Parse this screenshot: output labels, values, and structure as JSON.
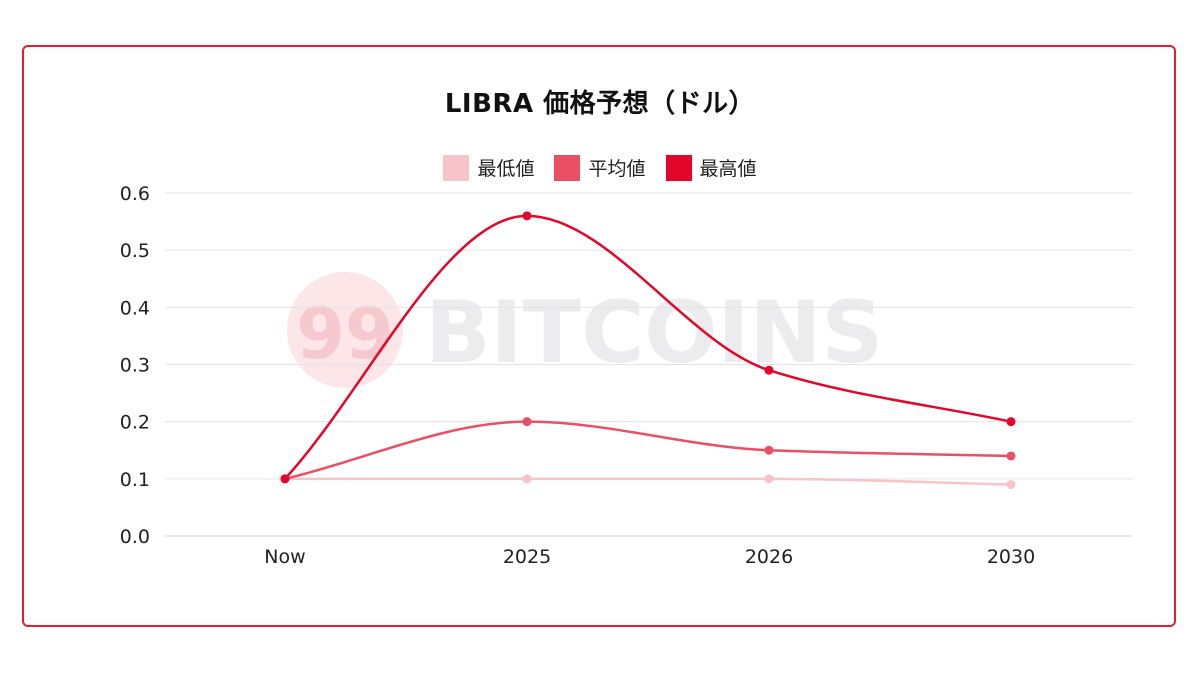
{
  "chart_data": {
    "type": "line",
    "title": "LIBRA 価格予想（ドル）",
    "categories": [
      "Now",
      "2025",
      "2026",
      "2030"
    ],
    "series": [
      {
        "name": "最低値",
        "color": "#f9c3cb",
        "values": [
          0.1,
          0.1,
          0.1,
          0.09
        ]
      },
      {
        "name": "平均値",
        "color": "#ea4f66",
        "values": [
          0.1,
          0.2,
          0.15,
          0.14
        ]
      },
      {
        "name": "最高値",
        "color": "#e4062a",
        "values": [
          0.1,
          0.56,
          0.29,
          0.2
        ]
      }
    ],
    "yticks": [
      0.0,
      0.1,
      0.2,
      0.3,
      0.4,
      0.5,
      0.6
    ],
    "ytick_labels": [
      "0.0",
      "0.1",
      "0.2",
      "0.3",
      "0.4",
      "0.5",
      "0.6"
    ],
    "ylim": [
      0,
      0.6
    ],
    "grid": true,
    "legend_position": "top-center",
    "xlabel": "",
    "ylabel": ""
  },
  "watermark": {
    "logo_text": "99",
    "brand": "BITCOINS"
  }
}
